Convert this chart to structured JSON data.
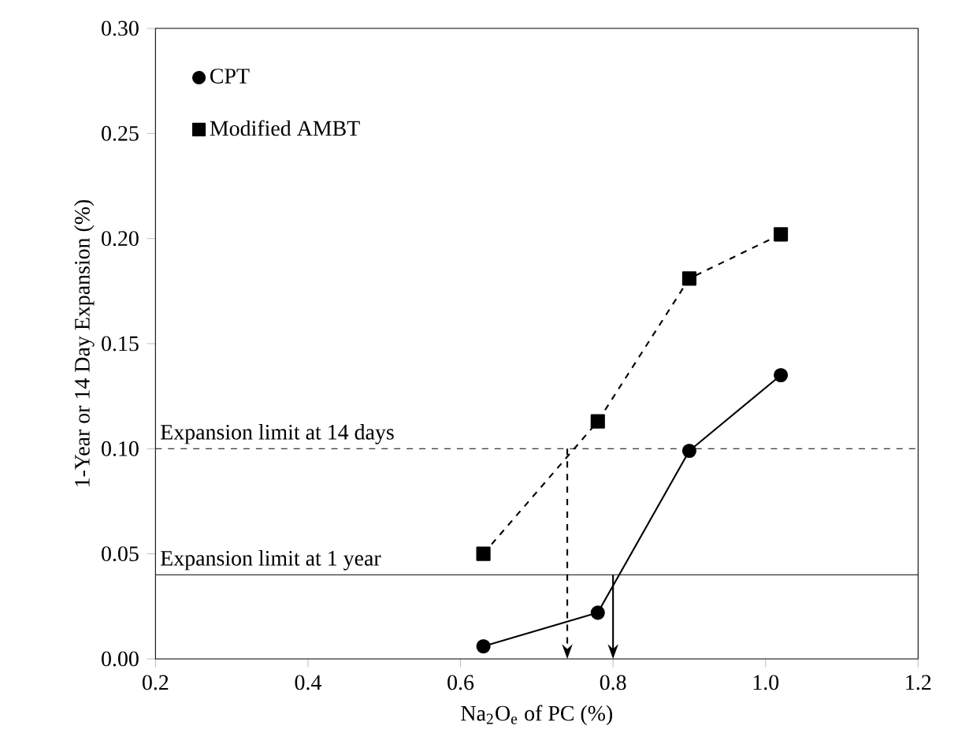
{
  "chart_data": {
    "type": "line",
    "xlabel": "Na$_{2}$O$_{e}$ of PC (%)",
    "ylabel": "1-Year or 14 Day Expansion (%)",
    "xlim": [
      0.2,
      1.2
    ],
    "ylim": [
      0,
      0.3
    ],
    "xticks": [
      0.2,
      0.4,
      0.6,
      0.8,
      {
        "value": 1,
        "label": "1.0"
      },
      1.2
    ],
    "yticks": [
      {
        "value": 0,
        "label": "0.00"
      },
      {
        "value": 0.05,
        "label": "0.05"
      },
      {
        "value": 0.1,
        "label": "0.10"
      },
      {
        "value": 0.15,
        "label": "0.15"
      },
      {
        "value": 0.2,
        "label": "0.20"
      },
      {
        "value": 0.25,
        "label": "0.25"
      },
      {
        "value": 0.3,
        "label": "0.30"
      }
    ],
    "series": [
      {
        "name": "CPT",
        "color": "#000000",
        "marker": "circle",
        "line_style": "solid",
        "x": [
          0.63,
          0.78,
          0.9,
          1.02
        ],
        "values": [
          0.006,
          0.022,
          0.099,
          0.135
        ]
      },
      {
        "name": "Modified AMBT",
        "color": "#000000",
        "marker": "square",
        "line_style": "dashed",
        "x": [
          0.63,
          0.78,
          0.9,
          1.02
        ],
        "values": [
          0.05,
          0.113,
          0.181,
          0.202
        ]
      }
    ],
    "ref_lines": [
      {
        "axis": "y",
        "value": 0.1,
        "label": "Expansion limit at 14 days",
        "line_style": "dashed",
        "color": "#000000"
      },
      {
        "axis": "y",
        "value": 0.04,
        "label": "Expansion limit at 1 year",
        "line_style": "solid",
        "color": "#000000"
      },
      {
        "axis": "x",
        "value": 0.74,
        "line_style": "dashed",
        "color": "#000000"
      },
      {
        "axis": "x",
        "value": 0.8,
        "line_style": "solid",
        "color": "#000000"
      }
    ],
    "legend": "top left",
    "grid": false
  }
}
